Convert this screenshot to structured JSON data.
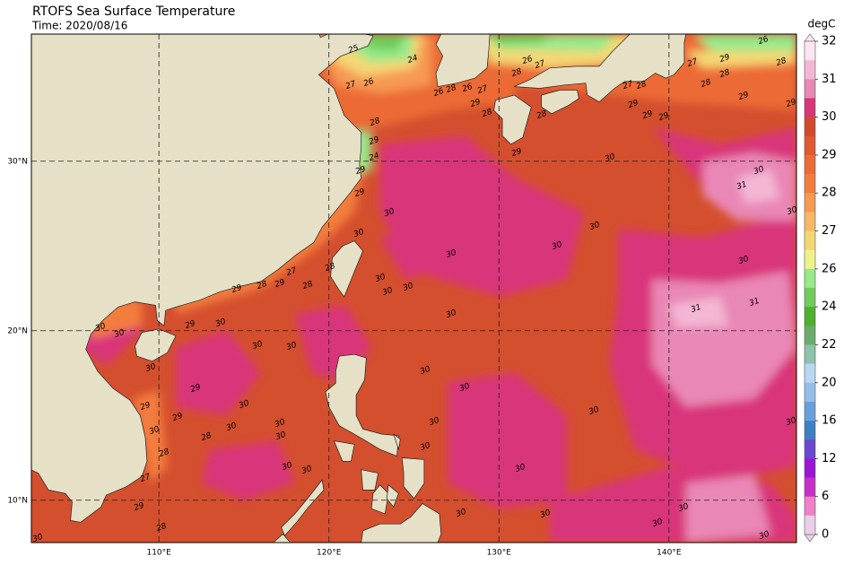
{
  "title": "RTOFS Sea Surface Temperature",
  "subtitle": "Time: 2020/08/16",
  "map": {
    "xlim": [
      102.5,
      147.5
    ],
    "ylim": [
      7.5,
      37.5
    ],
    "grid": true,
    "xticks": [
      {
        "value": 110,
        "label": "110°E"
      },
      {
        "value": 120,
        "label": "120°E"
      },
      {
        "value": 130,
        "label": "130°E"
      },
      {
        "value": 140,
        "label": "140°E"
      }
    ],
    "yticks": [
      {
        "value": 10,
        "label": "10°N"
      },
      {
        "value": 20,
        "label": "20°N"
      },
      {
        "value": 30,
        "label": "30°N"
      }
    ]
  },
  "colorbar": {
    "label": "degC",
    "ticks": [
      32,
      31,
      30,
      29,
      28,
      27,
      26,
      24,
      22,
      20,
      16,
      12,
      6,
      0
    ],
    "colors": [
      "#fde6f2",
      "#f3b7d4",
      "#e987b6",
      "#d9357a",
      "#d14a2c",
      "#df5a30",
      "#ec6b36",
      "#f37d3e",
      "#f69a53",
      "#f6b766",
      "#f4d775",
      "#eff28a",
      "#97e98a",
      "#72cc5c",
      "#4fb02d",
      "#6aac6c",
      "#8cc3aa",
      "#b9d6f2",
      "#95bde9",
      "#6aa0da",
      "#3c80c4",
      "#6a48d0",
      "#9a17d6",
      "#c82fc8",
      "#f080c8",
      "#e9cfe8"
    ]
  },
  "contour_labels": [
    30,
    30,
    30,
    30,
    29,
    29,
    29,
    30,
    28,
    28,
    27,
    29,
    28,
    30,
    30,
    30,
    30,
    30,
    30,
    30,
    30,
    29,
    30,
    29,
    28,
    29,
    27,
    28,
    28,
    29,
    30,
    30,
    30,
    30,
    30,
    30,
    30,
    30,
    30,
    30,
    30,
    30,
    30,
    30,
    30,
    30,
    30,
    30,
    30,
    30,
    30,
    30,
    30,
    30,
    31,
    30,
    31,
    31,
    29,
    29,
    29,
    29,
    29,
    28,
    28,
    28,
    29,
    27,
    26,
    28,
    27,
    27,
    26,
    25,
    24,
    28,
    29,
    24,
    29,
    26,
    28,
    26,
    27,
    28,
    29,
    28,
    28,
    26,
    27,
    29
  ]
}
